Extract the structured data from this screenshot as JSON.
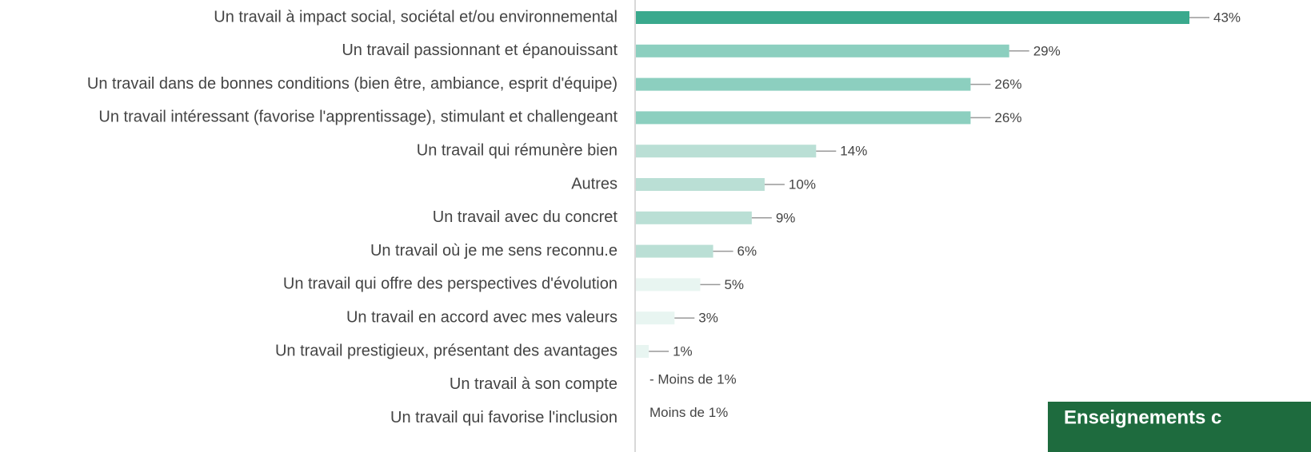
{
  "chart_data": {
    "type": "bar",
    "orientation": "horizontal",
    "categories": [
      "Un travail à impact social, sociétal et/ou environnemental",
      "Un travail passionnant et épanouissant",
      "Un travail dans de bonnes conditions (bien être, ambiance, esprit d'équipe)",
      "Un travail intéressant (favorise l'apprentissage), stimulant et challengeant",
      "Un travail qui rémunère bien",
      "Autres",
      "Un travail avec du concret",
      "Un travail où je me sens reconnu.e",
      "Un travail qui offre des perspectives d'évolution",
      "Un travail en accord avec mes valeurs",
      "Un travail prestigieux, présentant des avantages",
      "Un travail à son compte",
      "Un travail qui favorise l'inclusion"
    ],
    "values": [
      43,
      29,
      26,
      26,
      14,
      10,
      9,
      6,
      5,
      3,
      1,
      null,
      null
    ],
    "value_labels": [
      "43%",
      "29%",
      "26%",
      "26%",
      "14%",
      "10%",
      "9%",
      "6%",
      "5%",
      "3%",
      "1%",
      "- Moins de 1%",
      "Moins de 1%"
    ],
    "colors": [
      "#3aa98d",
      "#8ccfbf",
      "#8ccfbf",
      "#8ccfbf",
      "#badfd5",
      "#badfd5",
      "#badfd5",
      "#badfd5",
      "#e8f5f1",
      "#e8f5f1",
      "#e8f5f1",
      "#e8f5f1",
      "#e8f5f1"
    ],
    "xlim": [
      0,
      43
    ],
    "annotation": "Enseignements c"
  }
}
